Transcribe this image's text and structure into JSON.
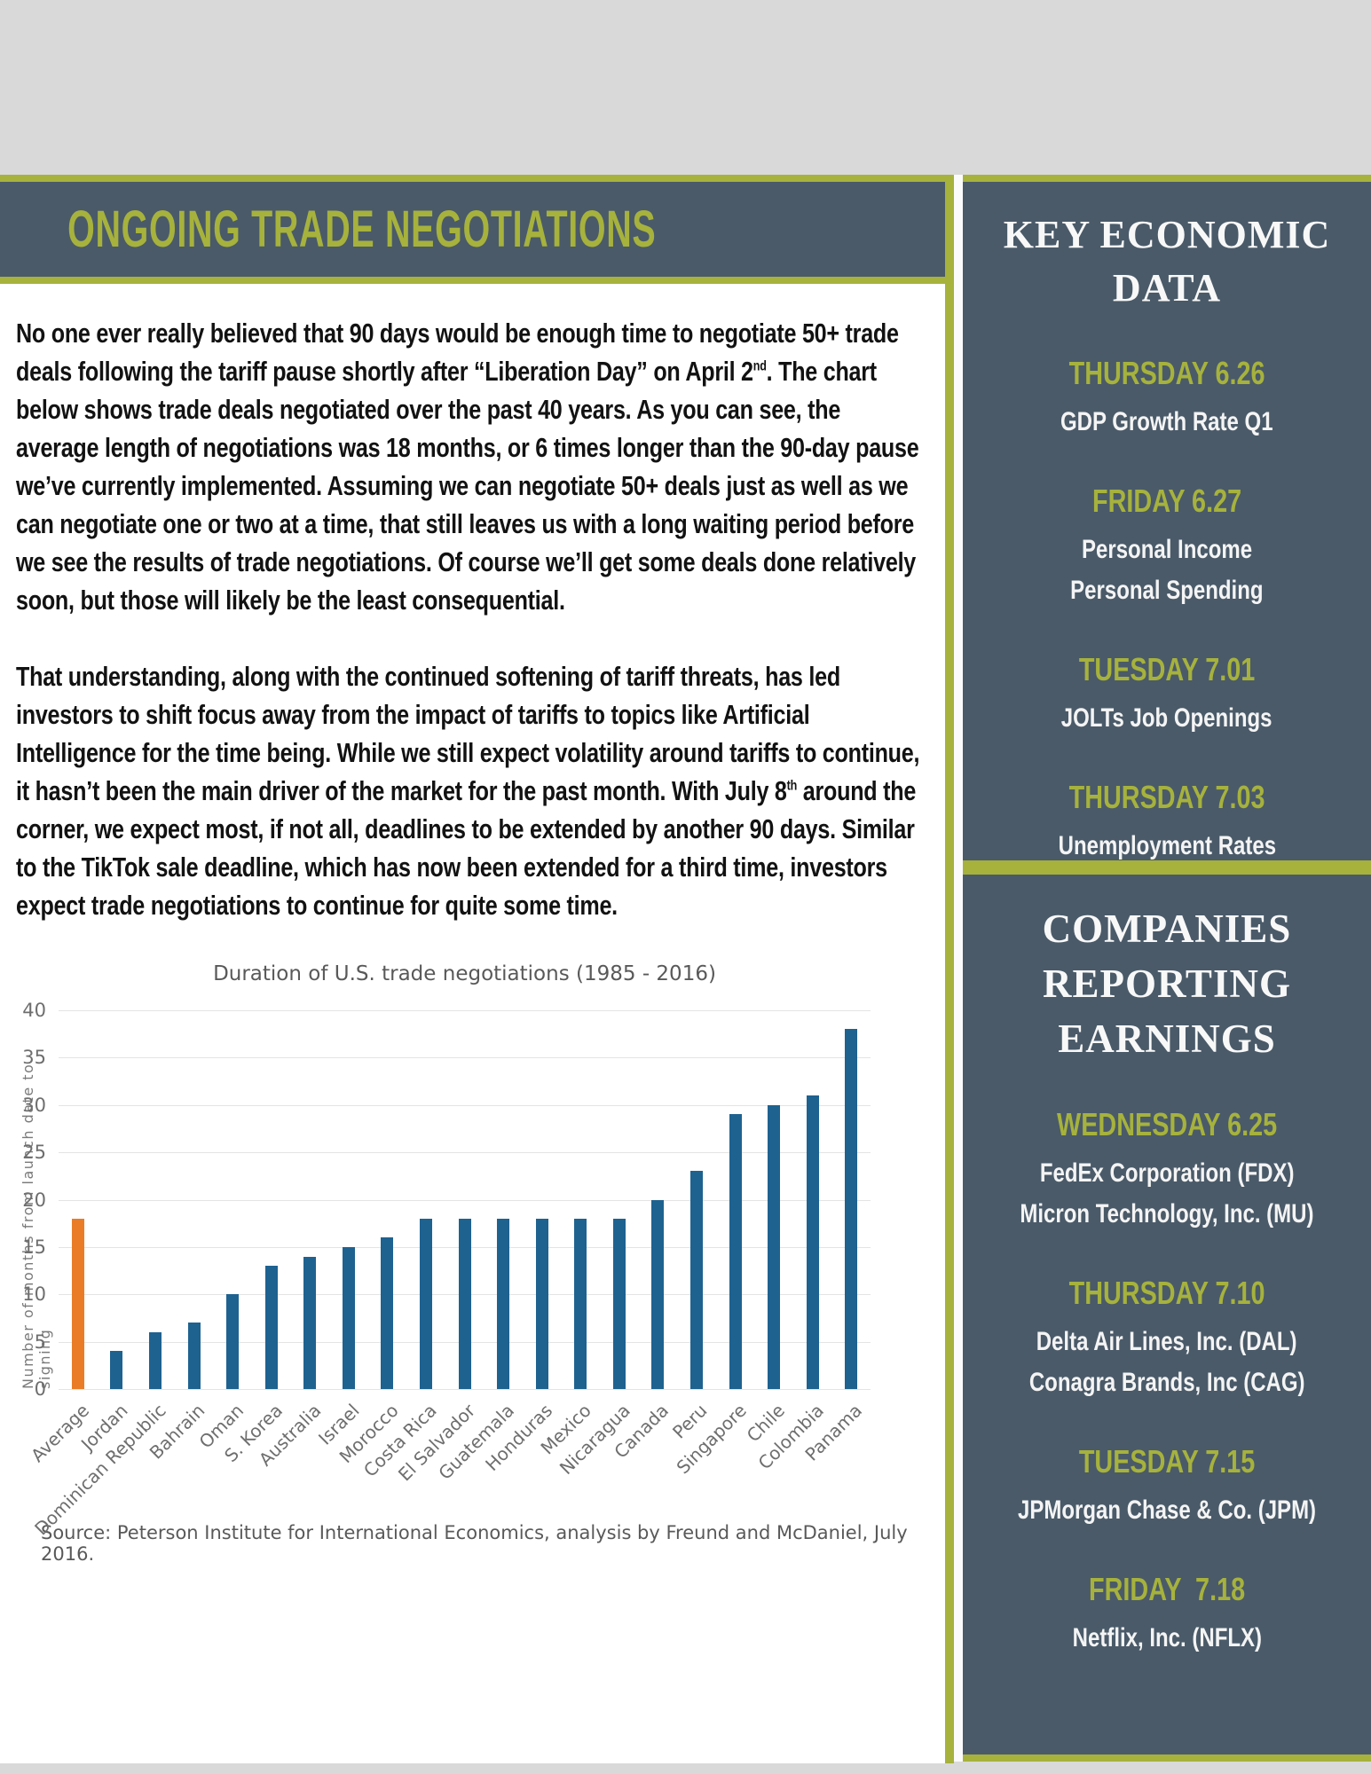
{
  "header": {
    "title": "ONGOING TRADE NEGOTIATIONS"
  },
  "article": {
    "p1": {
      "pre": "No one ever really believed that 90 days would be enough time to negotiate 50+ trade deals following the tariff pause shortly after “Liberation Day” on April 2",
      "sup": "nd",
      "post": ". The chart below shows trade deals negotiated over the past 40 years. As you can see, the average length of negotiations was 18 months, or 6 times longer than the 90-day pause we’ve currently implemented. Assuming we can negotiate 50+ deals just as well as we can negotiate one or two at a time, that still leaves us with a long waiting period before we see the results of trade negotiations. Of course we’ll get some deals done relatively soon, but those will likely be the least consequential."
    },
    "p2": {
      "pre": "That understanding, along with the continued softening of tariff threats, has led investors to shift focus away from the impact of tariffs to topics like Artificial Intelligence for the time being. While we still expect volatility around tariffs to continue, it hasn’t been the main driver of the market for the past month. With July 8",
      "sup": "th",
      "post": " around the corner, we expect most, if not all, deadlines to be extended by another 90 days. Similar to the TikTok sale deadline, which has now been extended for a third time, investors expect trade negotiations to continue for quite some time."
    }
  },
  "chart_data": {
    "type": "bar",
    "title": "Duration of U.S. trade negotiations (1985 - 2016)",
    "xlabel": "",
    "ylabel": "Number of months from launch date to signing",
    "ylim": [
      0,
      40
    ],
    "yticks": [
      0,
      5,
      10,
      15,
      20,
      25,
      30,
      35,
      40
    ],
    "grid": true,
    "legend": false,
    "categories": [
      "Average",
      "Jordan",
      "Dominican Republic",
      "Bahrain",
      "Oman",
      "S. Korea",
      "Australia",
      "Israel",
      "Morocco",
      "Costa Rica",
      "El Salvador",
      "Guatemala",
      "Honduras",
      "Mexico",
      "Nicaragua",
      "Canada",
      "Peru",
      "Singapore",
      "Chile",
      "Colombia",
      "Panama"
    ],
    "values": [
      18,
      4,
      6,
      7,
      10,
      13,
      14,
      15,
      16,
      18,
      18,
      18,
      18,
      18,
      18,
      20,
      23,
      29,
      30,
      31,
      38
    ],
    "highlight_index": 0,
    "bar_color": "#1e6290",
    "highlight_color": "#ea7c27",
    "source": "Source: Peterson Institute for International Economics, analysis by Freund and McDaniel, July 2016."
  },
  "sidebar": {
    "economic": {
      "title": "KEY ECONOMIC DATA",
      "entries": [
        {
          "date": "THURSDAY 6.26",
          "items": [
            "GDP Growth Rate Q1"
          ]
        },
        {
          "date": "FRIDAY 6.27",
          "items": [
            "Personal Income",
            "Personal Spending"
          ]
        },
        {
          "date": "TUESDAY 7.01",
          "items": [
            "JOLTs Job Openings"
          ]
        },
        {
          "date": "THURSDAY 7.03",
          "items": [
            "Unemployment Rates"
          ]
        }
      ]
    },
    "earnings": {
      "title": "COMPANIES REPORTING EARNINGS",
      "entries": [
        {
          "date": "WEDNESDAY 6.25",
          "items": [
            "FedEx Corporation (FDX)",
            "Micron Technology, Inc. (MU)"
          ]
        },
        {
          "date": "THURSDAY 7.10",
          "items": [
            "Delta Air Lines, Inc. (DAL)",
            "Conagra Brands, Inc (CAG)"
          ]
        },
        {
          "date": "TUESDAY 7.15",
          "items": [
            "JPMorgan Chase & Co. (JPM)"
          ]
        },
        {
          "date": "FRIDAY  7.18",
          "items": [
            "Netflix, Inc. (NFLX)"
          ]
        }
      ]
    }
  },
  "colors": {
    "page_background": "#d9d9d9",
    "panel_background": "#4a5a69",
    "accent_olive": "#a6b23c",
    "content_background": "#ffffff",
    "body_text": "#121212",
    "chart_text": "#6e6e6e"
  }
}
